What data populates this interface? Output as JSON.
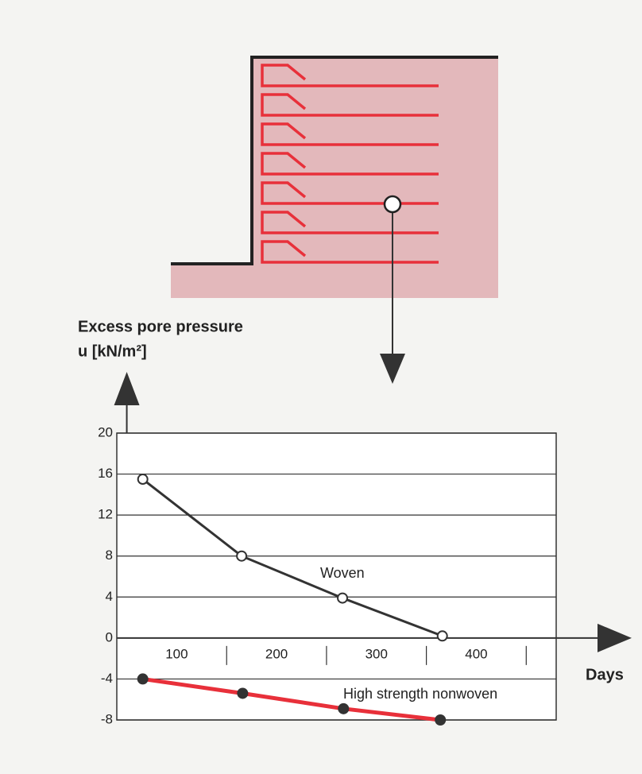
{
  "chart_data": {
    "type": "line",
    "y_label": [
      "Excess pore pressure",
      "u [kN/m²]"
    ],
    "x_label": "Days",
    "xlim": [
      -10,
      430
    ],
    "xticks": [
      100,
      200,
      300,
      400
    ],
    "ylim": [
      -8,
      20
    ],
    "yticks": [
      20,
      16,
      12,
      8,
      4,
      0,
      -4,
      -8
    ],
    "grid": true,
    "series": [
      {
        "name": "Woven",
        "color": "#333333",
        "marker": "open",
        "x": [
          16,
          115,
          216,
          316
        ],
        "values": [
          15.5,
          8,
          3.9,
          0.2
        ]
      },
      {
        "name": "High strength nonwoven",
        "color": "#e8303a",
        "marker": "filled",
        "x": [
          16,
          116,
          217,
          314
        ],
        "values": [
          -4,
          -5.4,
          -6.9,
          -8
        ]
      }
    ]
  }
}
